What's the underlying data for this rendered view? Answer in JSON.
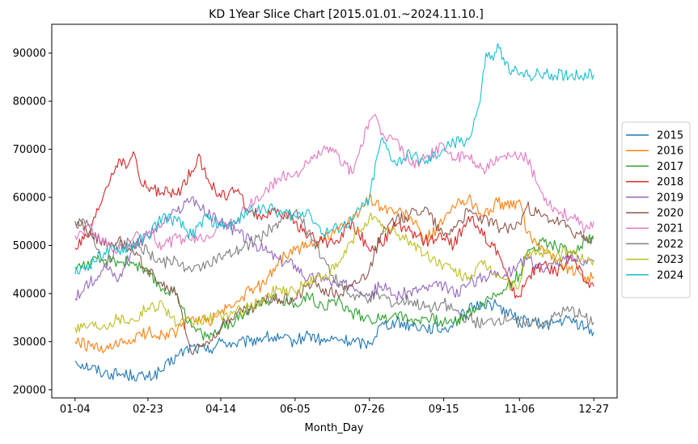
{
  "chart_data": {
    "type": "line",
    "title": "KD 1Year Slice Chart [2015.01.01.~2024.11.10.]",
    "xlabel": "Month_Day",
    "ylabel": "",
    "x_ticks": [
      "01-04",
      "02-23",
      "04-14",
      "06-05",
      "07-26",
      "09-15",
      "11-06",
      "12-27"
    ],
    "x_tick_index": [
      0,
      50,
      100,
      151,
      202,
      253,
      305,
      356
    ],
    "x_range": [
      -16,
      372
    ],
    "y_ticks": [
      20000,
      30000,
      40000,
      50000,
      60000,
      70000,
      80000,
      90000
    ],
    "ylim": [
      18300,
      96000
    ],
    "legend_position": "center-right",
    "grid": false,
    "colors": [
      "#1f77b4",
      "#ff7f0e",
      "#2ca02c",
      "#d62728",
      "#9467bd",
      "#8c564b",
      "#e377c2",
      "#7f7f7f",
      "#bcbd22",
      "#17becf"
    ],
    "series": [
      {
        "name": "2015",
        "x": [
          0,
          20,
          40,
          50,
          60,
          70,
          80,
          90,
          100,
          110,
          120,
          130,
          140,
          151,
          160,
          170,
          180,
          190,
          202,
          210,
          220,
          230,
          240,
          253,
          260,
          270,
          280,
          290,
          300,
          305,
          310,
          320,
          330,
          340,
          350,
          356
        ],
        "values": [
          26000,
          23500,
          23000,
          22500,
          24000,
          27000,
          29000,
          28000,
          30000,
          29500,
          30000,
          31000,
          30500,
          30000,
          31500,
          30000,
          30500,
          30000,
          29500,
          33500,
          34000,
          33500,
          33000,
          32500,
          34000,
          36500,
          38000,
          37500,
          35500,
          34000,
          34500,
          33500,
          34000,
          34500,
          33000,
          32000
        ]
      },
      {
        "name": "2016",
        "x": [
          0,
          20,
          40,
          50,
          60,
          70,
          80,
          90,
          100,
          110,
          120,
          130,
          140,
          151,
          160,
          170,
          180,
          190,
          202,
          210,
          220,
          230,
          240,
          253,
          260,
          270,
          280,
          290,
          300,
          305,
          310,
          320,
          330,
          340,
          350,
          356
        ],
        "values": [
          30000,
          28000,
          30500,
          32000,
          31500,
          32000,
          35000,
          34000,
          36000,
          38000,
          40500,
          42000,
          47000,
          49000,
          50000,
          51000,
          54000,
          55000,
          60000,
          58000,
          57000,
          56000,
          51000,
          55000,
          58000,
          60000,
          56000,
          59000,
          58000,
          59500,
          52500,
          50000,
          47000,
          45000,
          43500,
          43500
        ]
      },
      {
        "name": "2017",
        "x": [
          0,
          20,
          40,
          50,
          60,
          70,
          80,
          90,
          100,
          110,
          120,
          130,
          140,
          151,
          160,
          170,
          180,
          190,
          202,
          210,
          220,
          230,
          240,
          253,
          260,
          270,
          280,
          290,
          300,
          305,
          310,
          320,
          330,
          340,
          350,
          356
        ],
        "values": [
          45500,
          47000,
          46500,
          44000,
          41000,
          40000,
          33000,
          31000,
          32500,
          34500,
          37000,
          39000,
          38500,
          38000,
          39500,
          37500,
          38500,
          36000,
          35000,
          34500,
          36000,
          34500,
          35000,
          34000,
          34000,
          36000,
          38000,
          40000,
          42500,
          44000,
          48000,
          51000,
          50000,
          48500,
          51000,
          51500
        ]
      },
      {
        "name": "2018",
        "x": [
          0,
          10,
          20,
          30,
          35,
          40,
          45,
          50,
          60,
          70,
          80,
          85,
          90,
          100,
          110,
          120,
          130,
          140,
          151,
          160,
          170,
          180,
          190,
          202,
          210,
          220,
          230,
          240,
          253,
          260,
          270,
          280,
          290,
          300,
          305,
          310,
          320,
          330,
          340,
          350,
          356
        ],
        "values": [
          49500,
          52000,
          61000,
          68000,
          66000,
          69500,
          63000,
          62000,
          61000,
          60500,
          65500,
          69000,
          64000,
          60000,
          61500,
          57000,
          56000,
          57000,
          55000,
          52000,
          50500,
          51000,
          55000,
          49000,
          50500,
          54000,
          53000,
          51000,
          51500,
          50000,
          56000,
          52000,
          49000,
          40500,
          39500,
          43000,
          46000,
          44500,
          48000,
          42500,
          41500
        ]
      },
      {
        "name": "2019",
        "x": [
          0,
          10,
          20,
          30,
          40,
          50,
          60,
          70,
          80,
          90,
          100,
          110,
          120,
          130,
          140,
          151,
          160,
          170,
          180,
          190,
          202,
          210,
          220,
          230,
          240,
          253,
          260,
          270,
          280,
          290,
          300,
          305,
          310,
          320,
          330,
          340,
          350,
          356
        ],
        "values": [
          39000,
          42000,
          46000,
          43000,
          50000,
          52000,
          54500,
          57000,
          60000,
          56500,
          55000,
          53000,
          51000,
          49000,
          47000,
          46000,
          43000,
          43500,
          41500,
          42000,
          40000,
          41500,
          39500,
          40500,
          41000,
          41500,
          40000,
          42000,
          43500,
          44500,
          44500,
          46500,
          47000,
          45500,
          46000,
          47500,
          47000,
          46500
        ]
      },
      {
        "name": "2020",
        "x": [
          0,
          10,
          20,
          30,
          40,
          50,
          60,
          70,
          80,
          90,
          100,
          110,
          120,
          130,
          140,
          151,
          160,
          170,
          180,
          190,
          202,
          210,
          220,
          230,
          240,
          253,
          260,
          270,
          280,
          290,
          300,
          305,
          310,
          320,
          330,
          340,
          350,
          356
        ],
        "values": [
          55000,
          53000,
          50000,
          51500,
          48500,
          45000,
          41500,
          40000,
          27500,
          30000,
          33000,
          36000,
          36500,
          38500,
          39000,
          39000,
          42000,
          41000,
          40000,
          41500,
          45000,
          52500,
          55000,
          56500,
          58000,
          52000,
          54000,
          57000,
          55500,
          54000,
          53500,
          54500,
          58000,
          56000,
          55000,
          53500,
          51000,
          52000
        ]
      },
      {
        "name": "2021",
        "x": [
          0,
          10,
          20,
          30,
          40,
          50,
          60,
          70,
          80,
          90,
          100,
          110,
          120,
          130,
          140,
          151,
          160,
          170,
          180,
          190,
          202,
          205,
          210,
          220,
          230,
          240,
          253,
          260,
          270,
          280,
          290,
          300,
          305,
          310,
          320,
          330,
          340,
          350,
          356
        ],
        "values": [
          52000,
          54000,
          50500,
          49000,
          51500,
          52500,
          50000,
          51500,
          51000,
          52000,
          54000,
          55000,
          58500,
          61000,
          64000,
          65000,
          67000,
          70000,
          69000,
          65000,
          76000,
          77000,
          73000,
          72000,
          67000,
          68000,
          71000,
          68000,
          68500,
          66000,
          67500,
          68500,
          68500,
          68000,
          61000,
          57500,
          56000,
          53500,
          55000
        ]
      },
      {
        "name": "2022",
        "x": [
          0,
          10,
          20,
          30,
          40,
          50,
          60,
          70,
          80,
          90,
          100,
          110,
          120,
          130,
          140,
          151,
          160,
          170,
          180,
          190,
          202,
          210,
          220,
          230,
          240,
          253,
          260,
          270,
          280,
          290,
          300,
          305,
          310,
          320,
          330,
          340,
          350,
          356
        ],
        "values": [
          55000,
          54000,
          46000,
          50000,
          51000,
          48500,
          46500,
          47000,
          44500,
          46500,
          47500,
          48500,
          50500,
          52500,
          55000,
          57000,
          53000,
          47500,
          42500,
          39500,
          39000,
          39500,
          38000,
          38500,
          37000,
          38000,
          36500,
          34500,
          33500,
          34500,
          35000,
          34000,
          34500,
          33500,
          35500,
          36500,
          35000,
          34000
        ]
      },
      {
        "name": "2023",
        "x": [
          0,
          10,
          20,
          30,
          40,
          50,
          60,
          70,
          80,
          90,
          100,
          110,
          120,
          130,
          140,
          151,
          160,
          170,
          180,
          190,
          202,
          210,
          220,
          230,
          240,
          253,
          260,
          270,
          280,
          290,
          300,
          305,
          310,
          320,
          330,
          340,
          350,
          356
        ],
        "values": [
          33000,
          33500,
          33500,
          35000,
          34500,
          37000,
          38000,
          33500,
          34000,
          34500,
          35500,
          36000,
          37000,
          39000,
          41000,
          40500,
          42500,
          43500,
          45500,
          51000,
          56000,
          54000,
          52500,
          51000,
          48000,
          46000,
          44500,
          43500,
          46000,
          44000,
          41500,
          42000,
          48500,
          48500,
          47500,
          49000,
          46500,
          47000
        ]
      },
      {
        "name": "2024",
        "x": [
          0,
          10,
          20,
          30,
          40,
          50,
          60,
          70,
          80,
          90,
          100,
          110,
          120,
          130,
          140,
          151,
          160,
          170,
          180,
          190,
          202,
          210,
          220,
          230,
          240,
          253,
          260,
          270,
          278,
          282,
          287,
          290,
          295,
          300,
          305,
          356
        ],
        "values": [
          44000,
          46000,
          48500,
          49000,
          50000,
          52000,
          56000,
          55000,
          52000,
          56000,
          54000,
          54500,
          57500,
          58000,
          57000,
          56000,
          57500,
          52500,
          53500,
          55000,
          60000,
          72000,
          67000,
          69000,
          67000,
          70000,
          71500,
          72000,
          80000,
          90000,
          88500,
          92000,
          87500,
          86500,
          85500,
          85500
        ]
      }
    ]
  }
}
